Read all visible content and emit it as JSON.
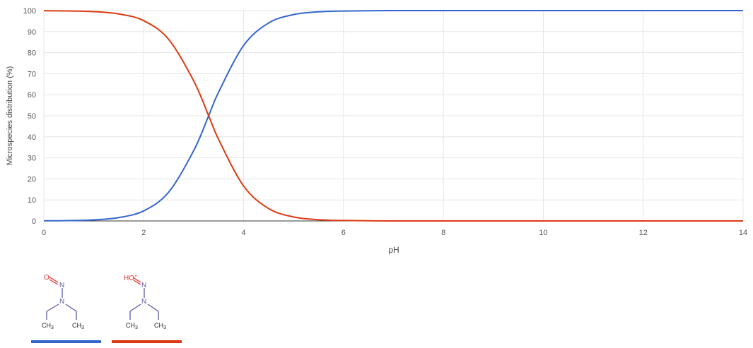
{
  "chart_data": {
    "type": "line",
    "title": "",
    "xlabel": "pH",
    "ylabel": "Microspecies distribution (%)",
    "xlim": [
      0,
      14
    ],
    "ylim": [
      0,
      100
    ],
    "x_ticks": [
      "0",
      "2",
      "4",
      "6",
      "8",
      "10",
      "12",
      "14"
    ],
    "y_ticks": [
      "0",
      "10",
      "20",
      "30",
      "40",
      "50",
      "60",
      "70",
      "80",
      "90",
      "100"
    ],
    "grid": true,
    "legend": "below (structure images with color bars)",
    "x": [
      0,
      0.5,
      1,
      1.5,
      2,
      2.5,
      3,
      3.3,
      3.5,
      4,
      4.5,
      5,
      5.5,
      6,
      7,
      8,
      9,
      10,
      11,
      12,
      13,
      14
    ],
    "series": [
      {
        "color": "#3366cc",
        "values": [
          0.05,
          0.16,
          0.5,
          1.6,
          4.8,
          13.7,
          33.4,
          50,
          61.3,
          83.4,
          94.1,
          98.1,
          99.4,
          99.8,
          100,
          100,
          100,
          100,
          100,
          100,
          100,
          100
        ]
      },
      {
        "color": "#dc3912",
        "values": [
          99.95,
          99.84,
          99.5,
          98.4,
          95.2,
          86.3,
          66.6,
          50,
          38.7,
          16.6,
          5.9,
          1.9,
          0.6,
          0.2,
          0,
          0,
          0,
          0,
          0,
          0,
          0,
          0
        ]
      }
    ]
  },
  "legend_items": [
    {
      "color": "#3366cc",
      "atoms": {
        "oxygen": "O",
        "nitroso_n": "N",
        "amine_n": "N",
        "ch3_left": "CH",
        "ch3_left_sub": "3",
        "ch3_right": "CH",
        "ch3_right_sub": "3"
      }
    },
    {
      "color": "#dc3912",
      "atoms": {
        "oxygen": "HO",
        "charge": "+",
        "nitroso_n": "N",
        "amine_n": "N",
        "ch3_left": "CH",
        "ch3_left_sub": "3",
        "ch3_right": "CH",
        "ch3_right_sub": "3"
      }
    }
  ]
}
